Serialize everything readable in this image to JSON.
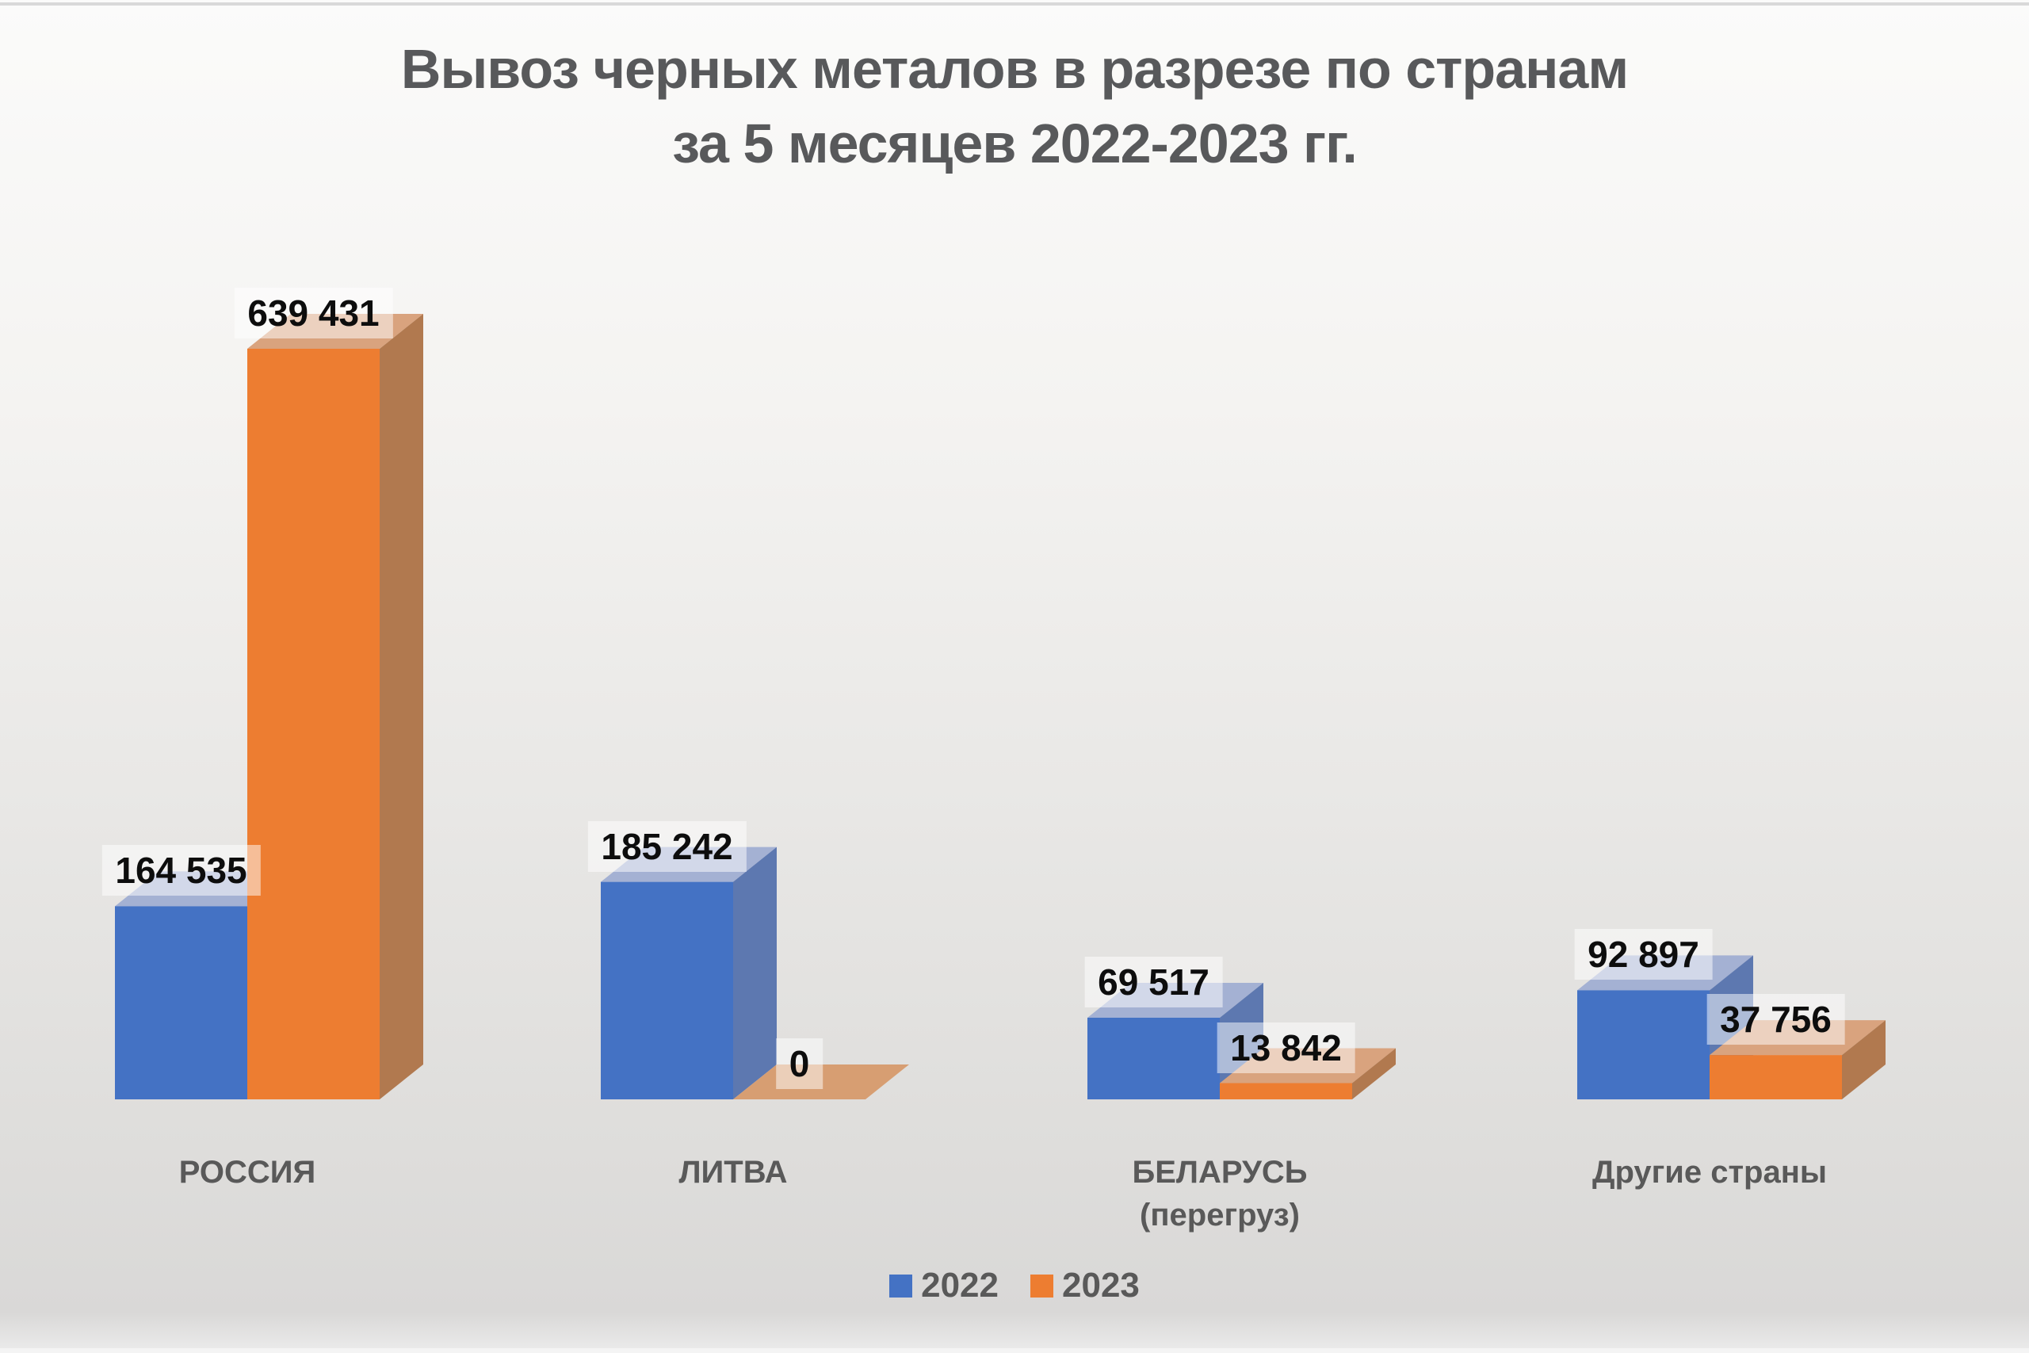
{
  "title": {
    "line1": "Вывоз черных металов в разрезе по странам",
    "line2": "за 5 месяцев 2022-2023 гг."
  },
  "legend": {
    "items": [
      {
        "label": "2022",
        "color": "#4472C4"
      },
      {
        "label": "2023",
        "color": "#ED7D31"
      }
    ]
  },
  "colors": {
    "title_text": "#58595b",
    "axis_text": "#595959",
    "value_text": "#0d0d0d",
    "value_chip_bg": "rgba(255,255,255,0.5)",
    "background_top": "#fbfbfa",
    "background_bottom": "#d9d8d7"
  },
  "chart_data": {
    "type": "bar",
    "projection": "3d",
    "title": "Вывоз черных металов в разрезе по странам за 5 месяцев 2022-2023 гг.",
    "categories": [
      "РОССИЯ",
      "ЛИТВА",
      "БЕЛАРУСЬ (перегруз)",
      "Другие страны"
    ],
    "categories_display": [
      [
        "РОССИЯ"
      ],
      [
        "ЛИТВА"
      ],
      [
        "БЕЛАРУСЬ",
        "(перегруз)"
      ],
      [
        "Другие страны"
      ]
    ],
    "series": [
      {
        "name": "2022",
        "values": [
          164535,
          185242,
          69517,
          92897
        ],
        "labels": [
          "164 535",
          "185 242",
          "69 517",
          "92 897"
        ],
        "style": {
          "front": "#4472C4",
          "top": "#A4B1D3",
          "side": "#5D78B0",
          "floor": "#9FB0D4"
        }
      },
      {
        "name": "2023",
        "values": [
          639431,
          0,
          13842,
          37756
        ],
        "labels": [
          "639 431",
          "0",
          "13 842",
          "37 756"
        ],
        "style": {
          "front": "#ED7D31",
          "top": "#D9A37E",
          "side": "#B1794F",
          "floor": "#D79E72"
        }
      }
    ],
    "data_labels": true,
    "legend_position": "bottom",
    "y_axis_visible": false,
    "gridlines": false
  }
}
